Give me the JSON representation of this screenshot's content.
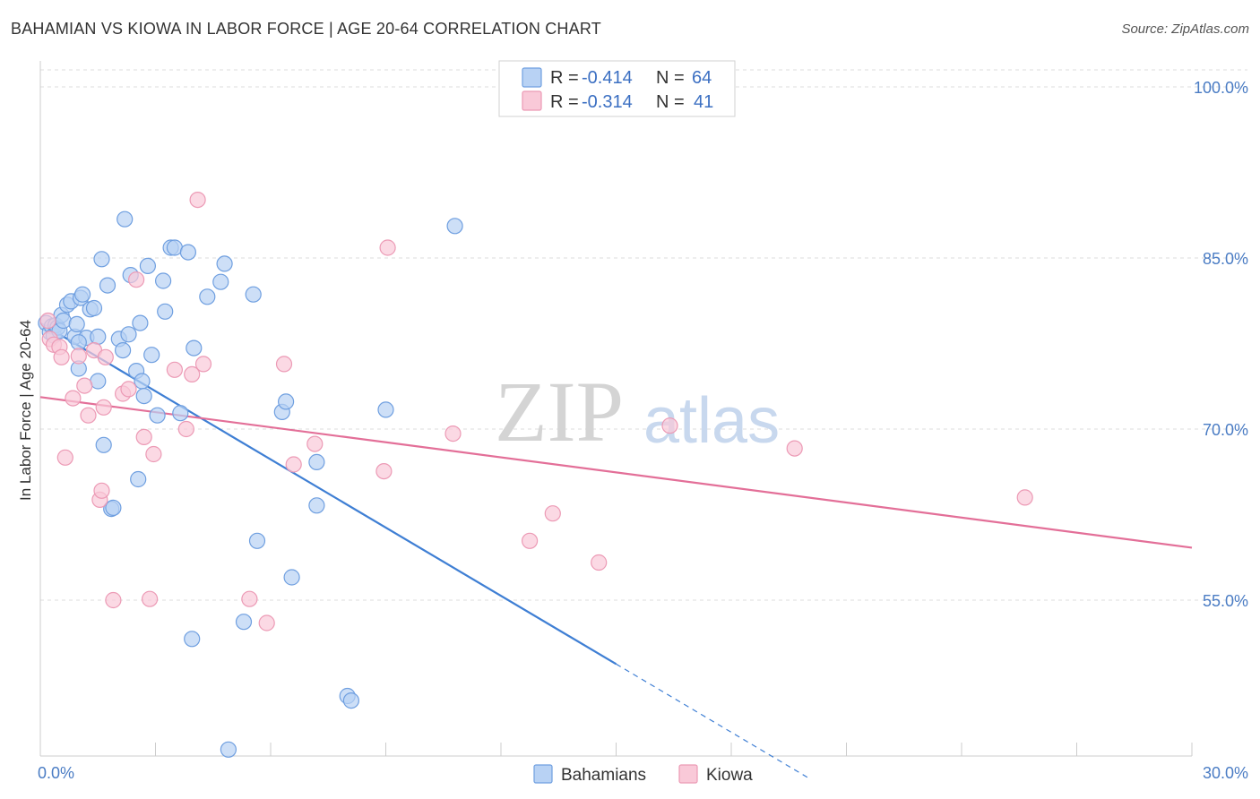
{
  "title": "BAHAMIAN VS KIOWA IN LABOR FORCE | AGE 20-64 CORRELATION CHART",
  "source": "Source: ZipAtlas.com",
  "watermark": {
    "zip": "ZIP",
    "atlas": "atlas"
  },
  "colors": {
    "bahamians_fill": "#b8d2f4",
    "bahamians_stroke": "#6f9fe0",
    "bahamians_line": "#3f7fd4",
    "kiowa_fill": "#f9c9d8",
    "kiowa_stroke": "#ec9ab5",
    "kiowa_line": "#e36f98",
    "grid": "#dddddd",
    "axis_text": "#4a7cc4"
  },
  "legend": {
    "rows": [
      {
        "r_label": "R =",
        "r_value": "-0.414",
        "n_label": "N =",
        "n_value": "64"
      },
      {
        "r_label": "R =",
        "r_value": "-0.314",
        "n_label": "N =",
        "n_value": "41"
      }
    ]
  },
  "chart_data": {
    "type": "scatter",
    "xlabel": "",
    "ylabel": "In Labor Force | Age 20-64",
    "xlim": [
      0,
      30
    ],
    "ylim": [
      40,
      102
    ],
    "x_tick_labels": [
      {
        "value": 0,
        "label": "0.0%"
      },
      {
        "value": 30,
        "label": "30.0%"
      }
    ],
    "y_tick_labels": [
      {
        "value": 100,
        "label": "100.0%"
      },
      {
        "value": 85,
        "label": "85.0%"
      },
      {
        "value": 70,
        "label": "70.0%"
      },
      {
        "value": 55,
        "label": "55.0%"
      }
    ],
    "series": [
      {
        "name": "Bahamians",
        "trend": {
          "x0": 0,
          "y0": 79.3,
          "x1": 15,
          "y1": 49.4,
          "dash_to_x": 20
        },
        "points": [
          [
            0.15,
            79.3
          ],
          [
            0.25,
            78.5
          ],
          [
            0.3,
            79.0
          ],
          [
            0.35,
            78.2
          ],
          [
            0.4,
            79.1
          ],
          [
            0.45,
            78.9
          ],
          [
            0.5,
            78.6
          ],
          [
            0.55,
            80.0
          ],
          [
            0.6,
            79.5
          ],
          [
            0.7,
            80.9
          ],
          [
            0.8,
            81.2
          ],
          [
            0.9,
            78.1
          ],
          [
            0.95,
            79.2
          ],
          [
            1.0,
            75.3
          ],
          [
            1.05,
            81.5
          ],
          [
            1.1,
            81.8
          ],
          [
            1.2,
            78.0
          ],
          [
            1.3,
            80.5
          ],
          [
            1.4,
            80.6
          ],
          [
            1.5,
            78.1
          ],
          [
            1.5,
            74.2
          ],
          [
            1.6,
            84.9
          ],
          [
            1.65,
            68.6
          ],
          [
            1.75,
            82.6
          ],
          [
            1.85,
            63.0
          ],
          [
            1.9,
            63.1
          ],
          [
            2.05,
            77.9
          ],
          [
            2.15,
            76.9
          ],
          [
            2.2,
            88.4
          ],
          [
            2.3,
            78.3
          ],
          [
            2.35,
            83.5
          ],
          [
            2.5,
            75.1
          ],
          [
            2.55,
            65.6
          ],
          [
            2.6,
            79.3
          ],
          [
            2.65,
            74.2
          ],
          [
            2.7,
            72.9
          ],
          [
            2.8,
            84.3
          ],
          [
            2.9,
            76.5
          ],
          [
            3.05,
            71.2
          ],
          [
            3.2,
            83.0
          ],
          [
            3.25,
            80.3
          ],
          [
            3.4,
            85.9
          ],
          [
            3.5,
            85.9
          ],
          [
            3.65,
            71.4
          ],
          [
            3.85,
            85.5
          ],
          [
            3.95,
            51.6
          ],
          [
            4.0,
            77.1
          ],
          [
            4.35,
            81.6
          ],
          [
            4.7,
            82.9
          ],
          [
            4.8,
            84.5
          ],
          [
            4.9,
            41.9
          ],
          [
            5.3,
            53.1
          ],
          [
            5.55,
            81.8
          ],
          [
            5.65,
            60.2
          ],
          [
            6.3,
            71.5
          ],
          [
            6.4,
            72.4
          ],
          [
            6.55,
            57.0
          ],
          [
            7.2,
            67.1
          ],
          [
            7.2,
            63.3
          ],
          [
            8.0,
            46.6
          ],
          [
            8.1,
            46.2
          ],
          [
            9.0,
            71.7
          ],
          [
            10.8,
            87.8
          ],
          [
            1.0,
            77.6
          ]
        ]
      },
      {
        "name": "Kiowa",
        "trend": {
          "x0": 0,
          "y0": 72.8,
          "x1": 30,
          "y1": 59.6
        },
        "points": [
          [
            0.2,
            79.5
          ],
          [
            0.25,
            77.9
          ],
          [
            0.35,
            77.4
          ],
          [
            0.5,
            77.2
          ],
          [
            0.55,
            76.3
          ],
          [
            0.65,
            67.5
          ],
          [
            0.85,
            72.7
          ],
          [
            1.0,
            76.4
          ],
          [
            1.15,
            73.8
          ],
          [
            1.25,
            71.2
          ],
          [
            1.4,
            76.9
          ],
          [
            1.55,
            63.8
          ],
          [
            1.6,
            64.6
          ],
          [
            1.65,
            71.9
          ],
          [
            1.7,
            76.3
          ],
          [
            1.9,
            55.0
          ],
          [
            2.15,
            73.1
          ],
          [
            2.3,
            73.5
          ],
          [
            2.5,
            83.1
          ],
          [
            2.7,
            69.3
          ],
          [
            2.85,
            55.1
          ],
          [
            2.95,
            67.8
          ],
          [
            3.5,
            75.2
          ],
          [
            3.8,
            70.0
          ],
          [
            3.95,
            74.8
          ],
          [
            4.1,
            90.1
          ],
          [
            4.25,
            75.7
          ],
          [
            5.45,
            55.1
          ],
          [
            5.9,
            53.0
          ],
          [
            6.35,
            75.7
          ],
          [
            6.6,
            66.9
          ],
          [
            7.15,
            68.7
          ],
          [
            8.95,
            66.3
          ],
          [
            9.05,
            85.9
          ],
          [
            10.75,
            69.6
          ],
          [
            12.75,
            60.2
          ],
          [
            13.35,
            62.6
          ],
          [
            14.55,
            58.3
          ],
          [
            16.4,
            70.3
          ],
          [
            19.65,
            68.3
          ],
          [
            25.65,
            64.0
          ]
        ]
      }
    ],
    "legend_position": "top-center",
    "grid": true
  },
  "bottom_legend": [
    {
      "label": "Bahamians"
    },
    {
      "label": "Kiowa"
    }
  ]
}
